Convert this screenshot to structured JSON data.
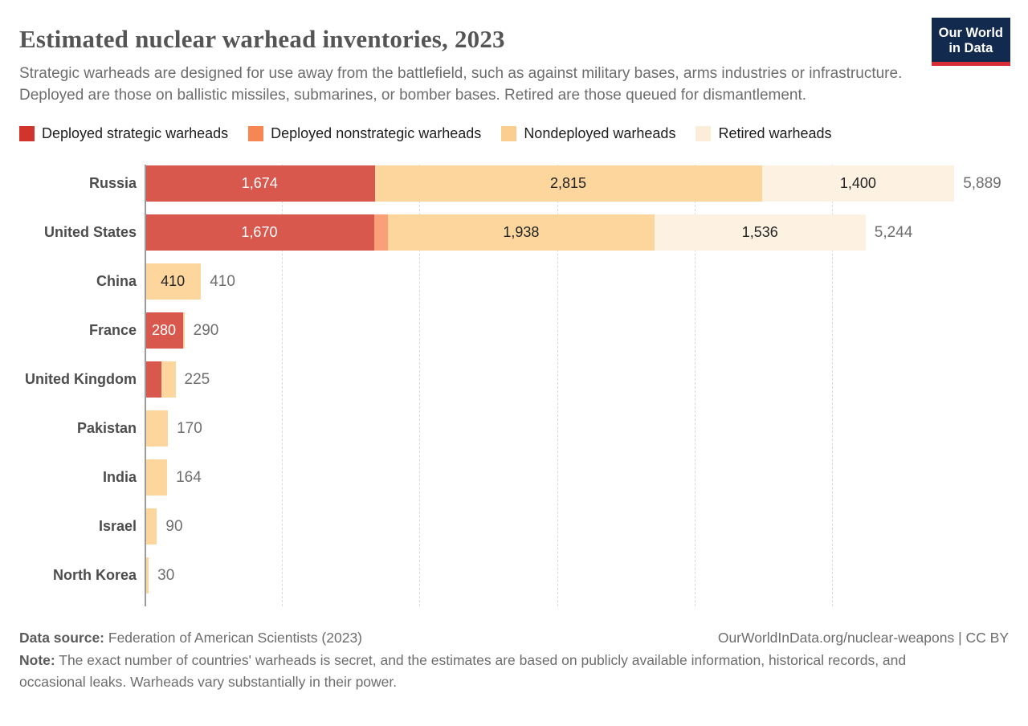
{
  "header": {
    "title": "Estimated nuclear warhead inventories, 2023",
    "subtitle": "Strategic warheads are designed for use away from the battlefield, such as against military bases, arms industries or infrastructure. Deployed are those on ballistic missiles, submarines, or bomber bases. Retired are those queued for dismantlement.",
    "logo": {
      "line1": "Our World",
      "line2": "in Data",
      "bg_color": "#122a4e",
      "accent_color": "#d92d35"
    }
  },
  "legend": [
    {
      "label": "Deployed strategic warheads",
      "swatch_color": "#d0342b"
    },
    {
      "label": "Deployed nonstrategic warheads",
      "swatch_color": "#f68752"
    },
    {
      "label": "Nondeployed warheads",
      "swatch_color": "#fbce90"
    },
    {
      "label": "Retired warheads",
      "swatch_color": "#fcedd8"
    }
  ],
  "chart_data": {
    "type": "bar",
    "orientation": "horizontal",
    "stacked": true,
    "title": "Estimated nuclear warhead inventories, 2023",
    "xlabel": "",
    "ylabel": "",
    "xlim": [
      0,
      6000
    ],
    "gridlines": [
      1000,
      2000,
      3000,
      4000,
      5000
    ],
    "grid": "dashed",
    "legend_position": "top",
    "series_names": [
      "Deployed strategic warheads",
      "Deployed nonstrategic warheads",
      "Nondeployed warheads",
      "Retired warheads"
    ],
    "series_bar_colors": [
      "#d9584d",
      "#f9a078",
      "#fcd69c",
      "#fdf2e1"
    ],
    "inside_label_color_on_red": "#ffffff",
    "inside_label_color_on_light": "#232323",
    "rows": [
      {
        "country": "Russia",
        "values": [
          1674,
          0,
          2815,
          1400
        ],
        "labels": [
          "1,674",
          null,
          "2,815",
          "1,400"
        ],
        "total": 5889,
        "total_label": "5,889"
      },
      {
        "country": "United States",
        "values": [
          1670,
          100,
          1938,
          1536
        ],
        "labels": [
          "1,670",
          null,
          "1,938",
          "1,536"
        ],
        "total": 5244,
        "total_label": "5,244"
      },
      {
        "country": "China",
        "values": [
          0,
          0,
          410,
          0
        ],
        "labels": [
          null,
          null,
          "410",
          null
        ],
        "total": 410,
        "total_label": "410"
      },
      {
        "country": "France",
        "values": [
          280,
          0,
          10,
          0
        ],
        "labels": [
          "280",
          null,
          null,
          null
        ],
        "total": 290,
        "total_label": "290"
      },
      {
        "country": "United Kingdom",
        "values": [
          120,
          0,
          105,
          0
        ],
        "labels": [
          null,
          null,
          null,
          null
        ],
        "total": 225,
        "total_label": "225"
      },
      {
        "country": "Pakistan",
        "values": [
          0,
          0,
          170,
          0
        ],
        "labels": [
          null,
          null,
          null,
          null
        ],
        "total": 170,
        "total_label": "170"
      },
      {
        "country": "India",
        "values": [
          0,
          0,
          164,
          0
        ],
        "labels": [
          null,
          null,
          null,
          null
        ],
        "total": 164,
        "total_label": "164"
      },
      {
        "country": "Israel",
        "values": [
          0,
          0,
          90,
          0
        ],
        "labels": [
          null,
          null,
          null,
          null
        ],
        "total": 90,
        "total_label": "90"
      },
      {
        "country": "North Korea",
        "values": [
          0,
          0,
          30,
          0
        ],
        "labels": [
          null,
          null,
          null,
          null
        ],
        "total": 30,
        "total_label": "30"
      }
    ]
  },
  "footer": {
    "datasource_label": "Data source:",
    "datasource_value": " Federation of American Scientists (2023)",
    "citation": "OurWorldInData.org/nuclear-weapons | CC BY",
    "note_label": "Note:",
    "note_value": " The exact number of countries' warheads is secret, and the estimates are based on publicly available information, historical records, and occasional leaks. Warheads vary substantially in their power."
  }
}
